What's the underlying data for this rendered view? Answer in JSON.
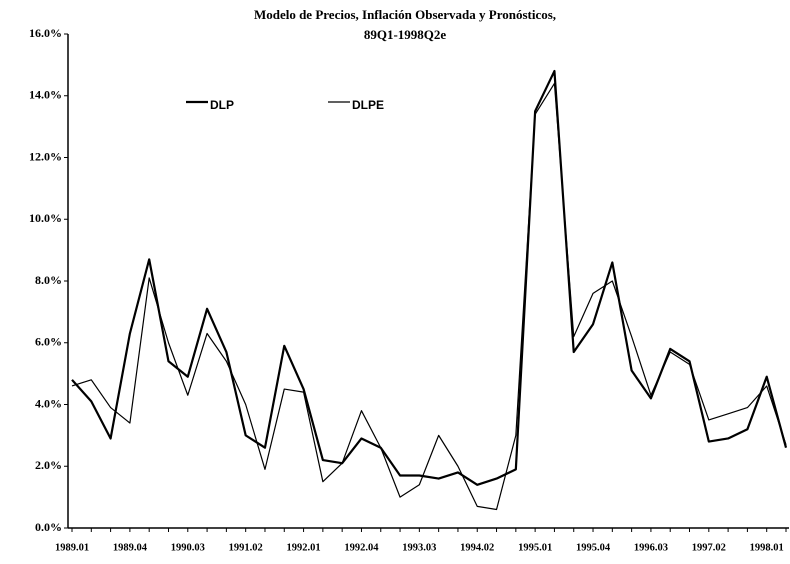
{
  "chart_data": {
    "type": "line",
    "title": [
      "Modelo de Precios, Inflación Observada y Pronósticos,",
      "89Q1-1998Q2e"
    ],
    "categories": [
      "1989.01",
      null,
      null,
      "1989.04",
      null,
      null,
      "1990.03",
      null,
      null,
      "1991.02",
      null,
      null,
      "1992.01",
      null,
      null,
      "1992.04",
      null,
      null,
      "1993.03",
      null,
      null,
      "1994.02",
      null,
      null,
      "1995.01",
      null,
      null,
      "1995.04",
      null,
      null,
      "1996.03",
      null,
      null,
      "1997.02",
      null,
      null,
      "1998.01",
      null
    ],
    "series": [
      {
        "name": "DLP",
        "color": "#000000",
        "values": [
          4.8,
          4.1,
          2.9,
          6.3,
          8.7,
          5.4,
          4.9,
          7.1,
          5.7,
          3.0,
          2.6,
          5.9,
          4.5,
          2.2,
          2.1,
          2.9,
          2.6,
          1.7,
          1.7,
          1.6,
          1.8,
          1.4,
          1.6,
          1.9,
          13.5,
          14.8,
          5.7,
          6.6,
          8.6,
          5.1,
          4.2,
          5.8,
          5.4,
          2.8,
          2.9,
          3.2,
          4.9,
          2.6
        ]
      },
      {
        "name": "DLPE",
        "color": "#000000",
        "values": [
          4.6,
          4.8,
          3.9,
          3.4,
          8.1,
          6.0,
          4.3,
          6.3,
          5.4,
          4.0,
          1.9,
          4.5,
          4.4,
          1.5,
          2.1,
          3.8,
          2.6,
          1.0,
          1.4,
          3.0,
          2.0,
          0.7,
          0.6,
          3.0,
          13.4,
          14.4,
          6.2,
          7.6,
          8.0,
          6.2,
          4.3,
          5.7,
          5.3,
          3.5,
          3.7,
          3.9,
          4.6,
          2.7
        ]
      }
    ],
    "ylim": [
      0,
      16
    ],
    "yticks": [
      {
        "value": 0,
        "label": "0.0%"
      },
      {
        "value": 2,
        "label": "2.0%"
      },
      {
        "value": 4,
        "label": "4.0%"
      },
      {
        "value": 6,
        "label": "6.0%"
      },
      {
        "value": 8,
        "label": "8.0%"
      },
      {
        "value": 10,
        "label": "10.0%"
      },
      {
        "value": 12,
        "label": "12.0%"
      },
      {
        "value": 14,
        "label": "14.0%"
      },
      {
        "value": 16,
        "label": "16.0%"
      }
    ]
  }
}
